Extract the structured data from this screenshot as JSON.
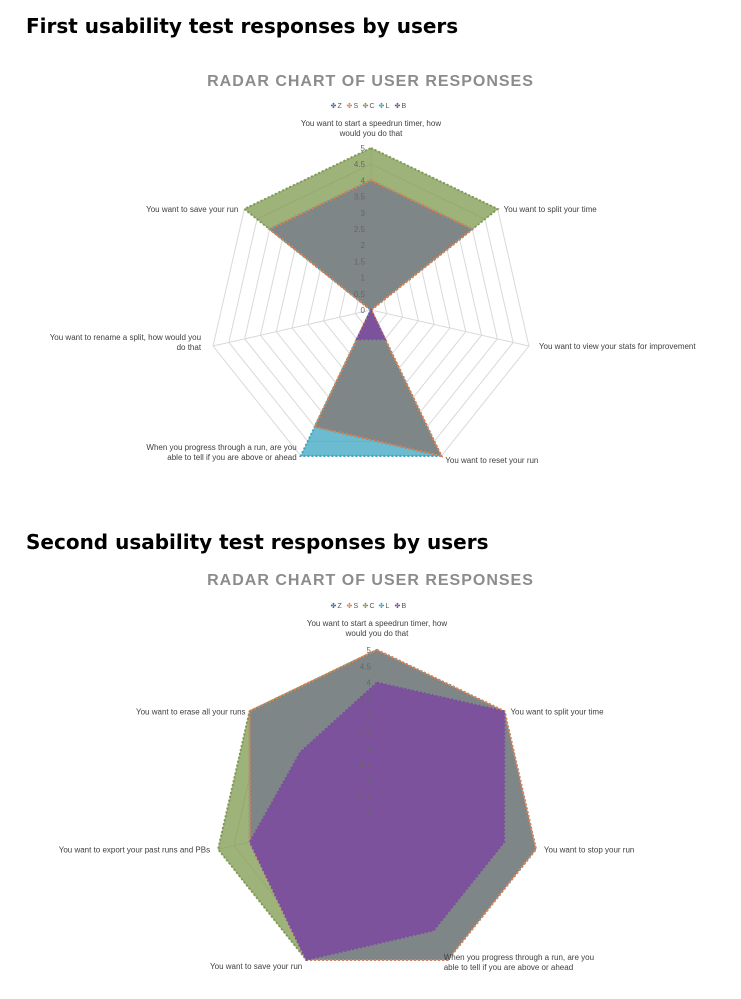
{
  "headings": {
    "first": "First usability test responses by users",
    "second": "Second usability test responses by users"
  },
  "colors": {
    "Z": "#3a6fa5",
    "S": "#e8804a",
    "C": "#7d9a4e",
    "L": "#3aa6c1",
    "B": "#7d4c9e"
  },
  "chart_data": [
    {
      "type": "radar",
      "title": "RADAR CHART OF USER RESPONSES",
      "axes": [
        "You want to start a speedrun timer, how would you do that",
        "You want to split your time",
        "You want to view your stats for improvement",
        "You want to reset your run",
        "When you progress through a run, are you able to tell if you are above or ahead",
        "You want to rename a split, how would you do that",
        "You want to save your run"
      ],
      "rlim": [
        0,
        5
      ],
      "ticks": [
        "0",
        "0.5",
        "1",
        "1.5",
        "2",
        "2.5",
        "3",
        "3.5",
        "4",
        "4.5",
        "5"
      ],
      "legend_position": "top",
      "series": [
        {
          "name": "Z",
          "values": [
            4,
            4,
            0,
            5,
            4,
            0,
            4
          ]
        },
        {
          "name": "S",
          "values": [
            4,
            4,
            0,
            5,
            4,
            0,
            4
          ]
        },
        {
          "name": "C",
          "values": [
            5,
            5,
            0,
            5,
            4,
            0,
            5
          ]
        },
        {
          "name": "L",
          "values": [
            4,
            4,
            0,
            5,
            5,
            0,
            4
          ]
        },
        {
          "name": "B",
          "values": [
            0,
            0,
            0,
            1,
            1,
            0,
            0
          ]
        }
      ]
    },
    {
      "type": "radar",
      "title": "RADAR CHART OF USER RESPONSES",
      "axes": [
        "You want to start a speedrun timer, how would you do that",
        "You want to split your time",
        "You want to stop your run",
        "When you progress through a run, are you able to tell if you are above or ahead",
        "You want to save your run",
        "You want to export your past runs and PBs",
        "You want to erase all your runs"
      ],
      "rlim": [
        0,
        5
      ],
      "ticks": [
        "0",
        "0.5",
        "1",
        "1.5",
        "2",
        "2.5",
        "3",
        "3.5",
        "4",
        "4.5",
        "5"
      ],
      "legend_position": "top",
      "series": [
        {
          "name": "Z",
          "values": [
            5,
            5,
            5,
            5,
            5,
            4,
            5
          ]
        },
        {
          "name": "S",
          "values": [
            5,
            5,
            5,
            5,
            5,
            4,
            5
          ]
        },
        {
          "name": "C",
          "values": [
            5,
            5,
            5,
            5,
            5,
            5,
            5
          ]
        },
        {
          "name": "L",
          "values": [
            5,
            5,
            5,
            5,
            5,
            4,
            5
          ]
        },
        {
          "name": "B",
          "values": [
            4,
            5,
            4,
            4,
            5,
            4,
            3
          ]
        }
      ]
    }
  ]
}
